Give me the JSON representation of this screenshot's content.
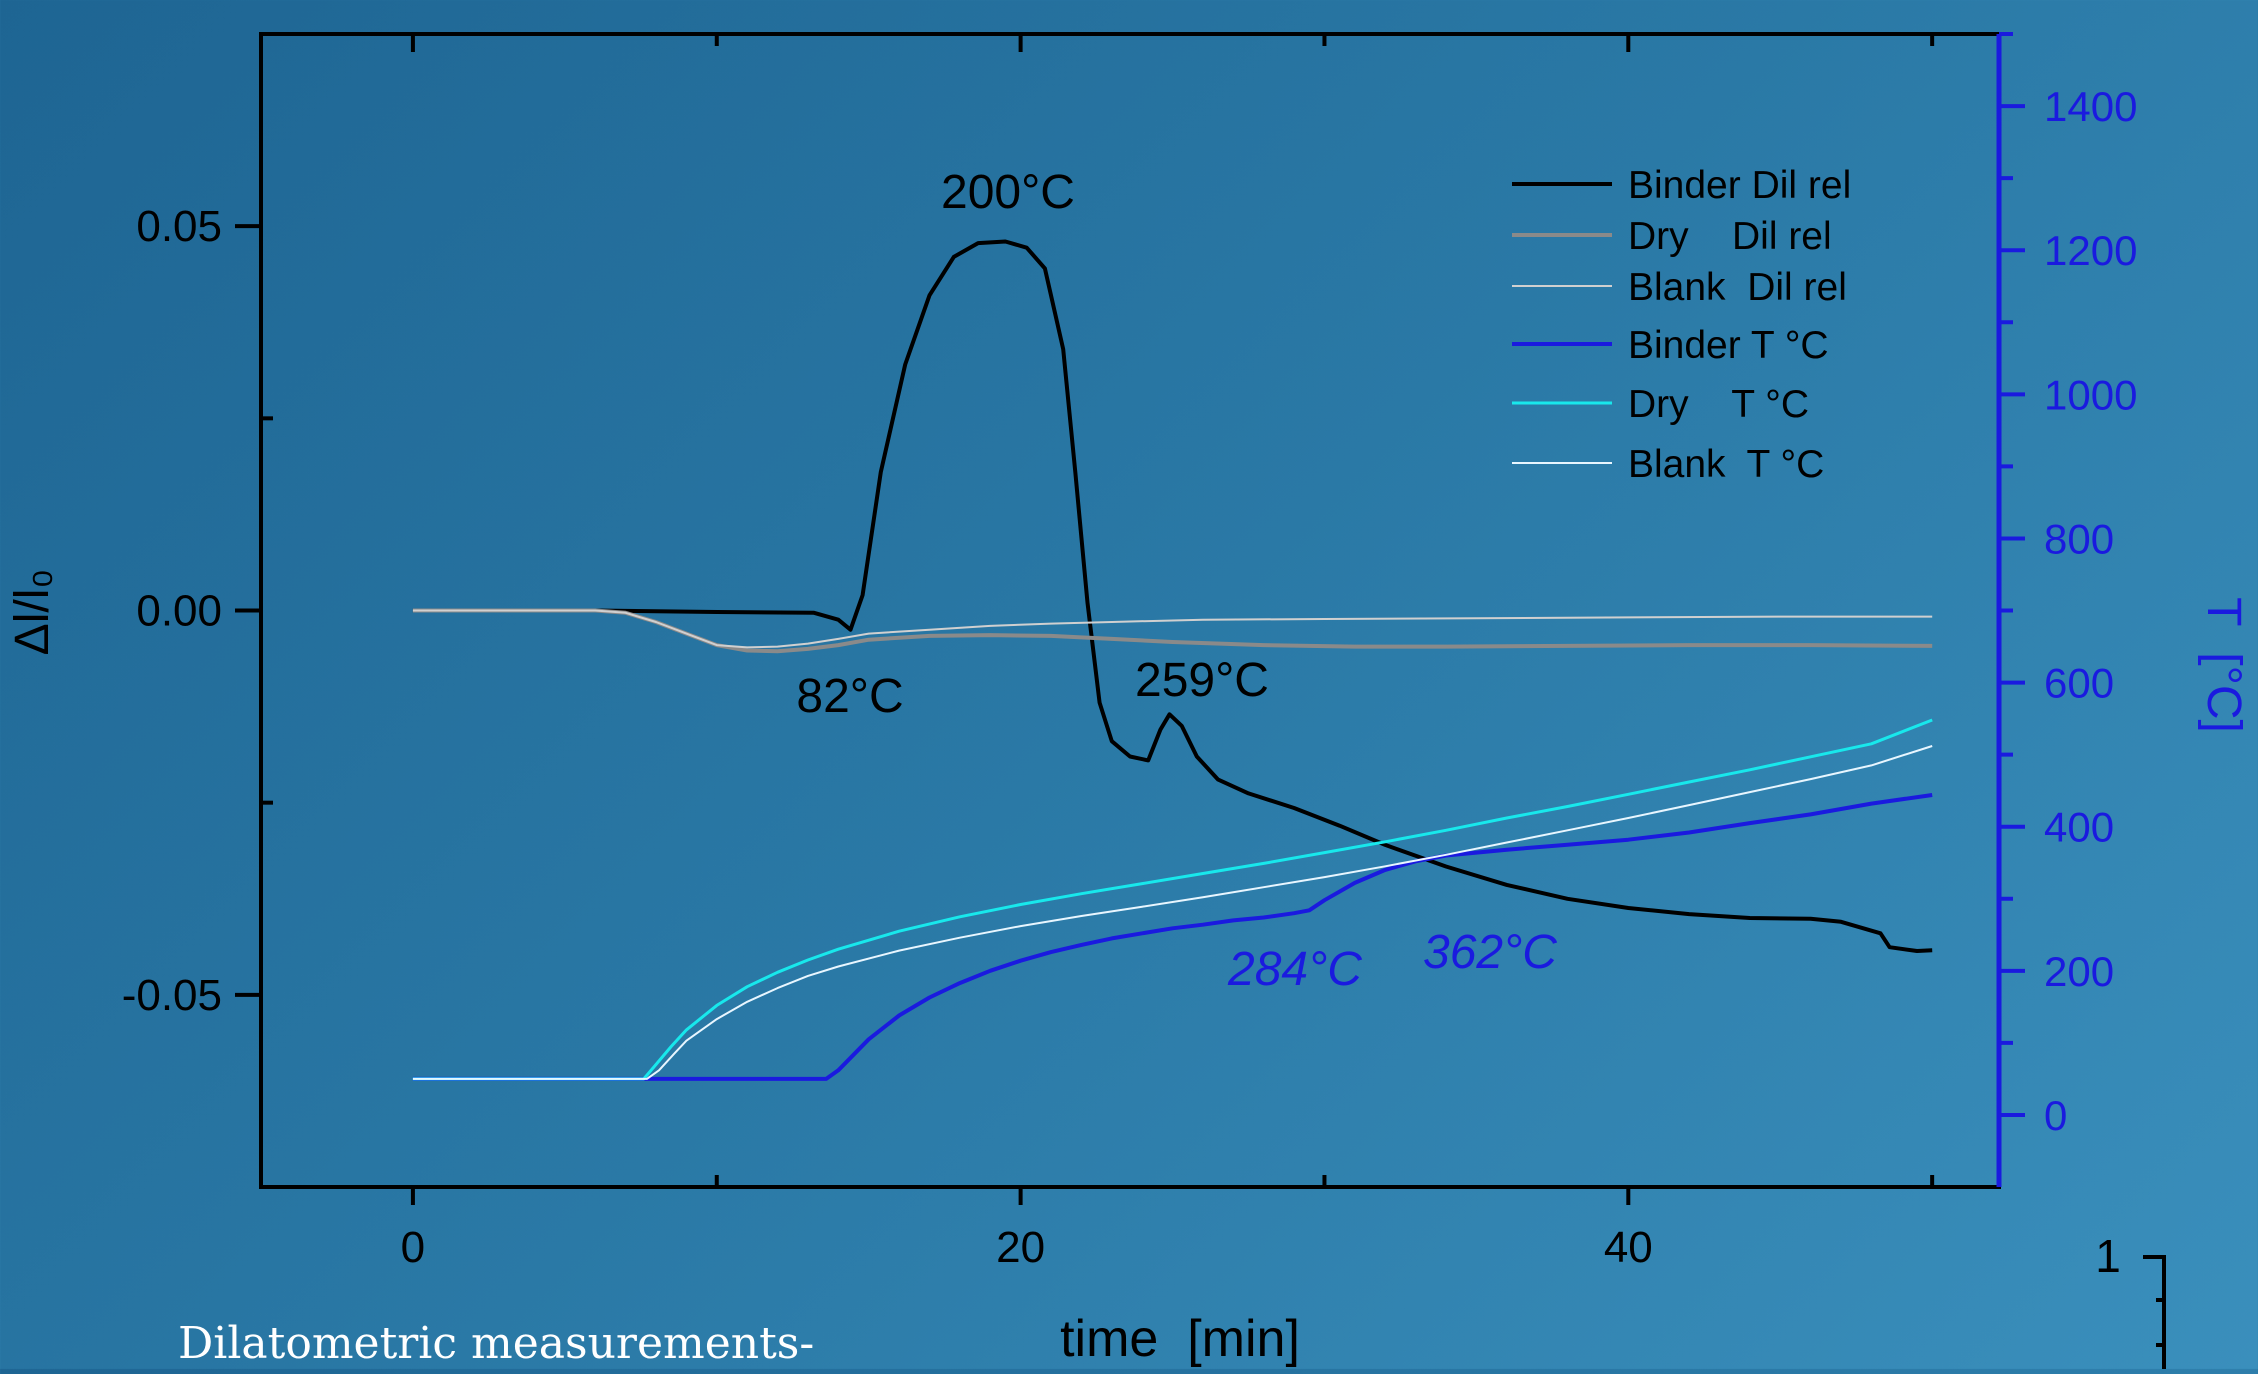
{
  "chart_data": {
    "type": "line",
    "xlabel": "time  [min]",
    "ylabel_left": "Δl/l₀",
    "ylabel_right": "T  [°C]",
    "xlim": [
      -5,
      52.2
    ],
    "ylim_left": [
      -0.075,
      0.075
    ],
    "ylim_right": [
      -100,
      1500
    ],
    "x_ticks": [
      0,
      20,
      40
    ],
    "y_left_ticks": [
      0.05,
      0.0,
      -0.05
    ],
    "y_left_tick_labels": [
      "0.05",
      "0.00",
      "-0.05"
    ],
    "y_right_ticks": [
      0,
      200,
      400,
      600,
      800,
      1000,
      1200,
      1400
    ],
    "grid": false,
    "legend_position": "top-right",
    "series": [
      {
        "name": "Binder Dil rel",
        "axis": "left",
        "color": "#000000",
        "width": 4,
        "points": [
          [
            0,
            0
          ],
          [
            6,
            0
          ],
          [
            10,
            -0.0002
          ],
          [
            13.2,
            -0.0003
          ],
          [
            14,
            -0.0012
          ],
          [
            14.4,
            -0.0025
          ],
          [
            14.8,
            0.002
          ],
          [
            15.4,
            0.018
          ],
          [
            16.2,
            0.032
          ],
          [
            17,
            0.041
          ],
          [
            17.8,
            0.046
          ],
          [
            18.6,
            0.0478
          ],
          [
            19.5,
            0.048
          ],
          [
            20.2,
            0.0472
          ],
          [
            20.8,
            0.0445
          ],
          [
            21.4,
            0.034
          ],
          [
            21.8,
            0.018
          ],
          [
            22.2,
            0.001
          ],
          [
            22.6,
            -0.012
          ],
          [
            23,
            -0.017
          ],
          [
            23.6,
            -0.019
          ],
          [
            24.2,
            -0.0195
          ],
          [
            24.6,
            -0.0155
          ],
          [
            24.9,
            -0.0135
          ],
          [
            25.3,
            -0.015
          ],
          [
            25.8,
            -0.019
          ],
          [
            26.5,
            -0.022
          ],
          [
            27.5,
            -0.0238
          ],
          [
            29,
            -0.0257
          ],
          [
            30.5,
            -0.028
          ],
          [
            32,
            -0.0305
          ],
          [
            34,
            -0.0333
          ],
          [
            36,
            -0.0357
          ],
          [
            38,
            -0.0375
          ],
          [
            40,
            -0.0387
          ],
          [
            42,
            -0.0395
          ],
          [
            44,
            -0.04
          ],
          [
            46,
            -0.0401
          ],
          [
            47,
            -0.0405
          ],
          [
            48.3,
            -0.042
          ],
          [
            48.6,
            -0.0438
          ],
          [
            49.5,
            -0.0443
          ],
          [
            50,
            -0.0442
          ]
        ]
      },
      {
        "name": "Dry    Dil rel",
        "axis": "left",
        "color": "#8a8a8a",
        "width": 4,
        "points": [
          [
            0,
            0
          ],
          [
            6,
            0
          ],
          [
            7,
            -0.0003
          ],
          [
            8,
            -0.0015
          ],
          [
            9,
            -0.003
          ],
          [
            10,
            -0.0045
          ],
          [
            11,
            -0.0052
          ],
          [
            12,
            -0.0053
          ],
          [
            13,
            -0.005
          ],
          [
            14,
            -0.0045
          ],
          [
            15,
            -0.0038
          ],
          [
            17,
            -0.0033
          ],
          [
            19,
            -0.0032
          ],
          [
            21,
            -0.0033
          ],
          [
            23,
            -0.0037
          ],
          [
            25,
            -0.0041
          ],
          [
            28,
            -0.0045
          ],
          [
            31,
            -0.0047
          ],
          [
            34,
            -0.0047
          ],
          [
            38,
            -0.0046
          ],
          [
            42,
            -0.0045
          ],
          [
            46,
            -0.0045
          ],
          [
            50,
            -0.0046
          ]
        ]
      },
      {
        "name": "Blank  Dil rel",
        "axis": "left",
        "color": "#d0d0d0",
        "width": 2,
        "points": [
          [
            0,
            0
          ],
          [
            6,
            0
          ],
          [
            7,
            -0.0003
          ],
          [
            8,
            -0.0015
          ],
          [
            9,
            -0.003
          ],
          [
            10,
            -0.0045
          ],
          [
            11,
            -0.0048
          ],
          [
            12,
            -0.0047
          ],
          [
            13,
            -0.0043
          ],
          [
            14,
            -0.0037
          ],
          [
            15,
            -0.003
          ],
          [
            17,
            -0.0025
          ],
          [
            19,
            -0.002
          ],
          [
            21,
            -0.0017
          ],
          [
            23,
            -0.0015
          ],
          [
            26,
            -0.0012
          ],
          [
            30,
            -0.0011
          ],
          [
            35,
            -0.001
          ],
          [
            40,
            -0.0009
          ],
          [
            45,
            -0.0008
          ],
          [
            50,
            -0.0008
          ]
        ]
      },
      {
        "name": "Binder T °C",
        "axis": "right",
        "color": "#1a1adf",
        "width": 4,
        "points": [
          [
            0,
            50
          ],
          [
            13.6,
            50
          ],
          [
            14,
            62
          ],
          [
            15,
            105
          ],
          [
            16,
            138
          ],
          [
            17,
            163
          ],
          [
            18,
            183
          ],
          [
            19,
            200
          ],
          [
            20,
            214
          ],
          [
            21,
            226
          ],
          [
            22,
            236
          ],
          [
            23,
            245
          ],
          [
            24,
            252
          ],
          [
            25,
            259
          ],
          [
            26,
            264
          ],
          [
            27,
            270
          ],
          [
            28,
            274
          ],
          [
            29,
            280
          ],
          [
            29.5,
            284
          ],
          [
            30,
            298
          ],
          [
            31,
            322
          ],
          [
            32,
            340
          ],
          [
            33,
            352
          ],
          [
            34,
            360
          ],
          [
            35,
            364
          ],
          [
            36,
            368
          ],
          [
            38,
            375
          ],
          [
            40,
            382
          ],
          [
            42,
            392
          ],
          [
            44,
            405
          ],
          [
            46,
            417
          ],
          [
            48,
            432
          ],
          [
            50,
            444
          ]
        ]
      },
      {
        "name": "Dry    T °C",
        "axis": "right",
        "color": "#18e8ec",
        "width": 3,
        "points": [
          [
            0,
            50
          ],
          [
            7.6,
            50
          ],
          [
            8,
            70
          ],
          [
            8.5,
            95
          ],
          [
            9,
            118
          ],
          [
            10,
            152
          ],
          [
            11,
            178
          ],
          [
            12,
            198
          ],
          [
            13,
            215
          ],
          [
            14,
            230
          ],
          [
            16,
            255
          ],
          [
            18,
            275
          ],
          [
            20,
            292
          ],
          [
            22,
            307
          ],
          [
            24,
            321
          ],
          [
            26,
            335
          ],
          [
            28,
            349
          ],
          [
            30,
            364
          ],
          [
            32,
            379
          ],
          [
            34,
            395
          ],
          [
            36,
            412
          ],
          [
            38,
            428
          ],
          [
            40,
            445
          ],
          [
            42,
            462
          ],
          [
            44,
            479
          ],
          [
            46,
            497
          ],
          [
            48,
            515
          ],
          [
            50,
            548
          ]
        ]
      },
      {
        "name": "Blank  T °C",
        "axis": "right",
        "color": "#e8f6ff",
        "width": 2,
        "points": [
          [
            0,
            50
          ],
          [
            7.7,
            50
          ],
          [
            8.1,
            62
          ],
          [
            8.6,
            85
          ],
          [
            9,
            103
          ],
          [
            10,
            133
          ],
          [
            11,
            157
          ],
          [
            12,
            176
          ],
          [
            13,
            193
          ],
          [
            14,
            206
          ],
          [
            16,
            228
          ],
          [
            18,
            246
          ],
          [
            20,
            262
          ],
          [
            22,
            276
          ],
          [
            24,
            289
          ],
          [
            26,
            302
          ],
          [
            28,
            316
          ],
          [
            30,
            330
          ],
          [
            32,
            345
          ],
          [
            34,
            361
          ],
          [
            36,
            378
          ],
          [
            38,
            395
          ],
          [
            40,
            412
          ],
          [
            42,
            430
          ],
          [
            44,
            448
          ],
          [
            46,
            466
          ],
          [
            48,
            485
          ],
          [
            50,
            512
          ]
        ]
      }
    ],
    "annotations": [
      {
        "text": "200°C",
        "color": "#000000",
        "italic": false
      },
      {
        "text": "82°C",
        "color": "#000000",
        "italic": false
      },
      {
        "text": "259°C",
        "color": "#000000",
        "italic": false
      },
      {
        "text": "284°C",
        "color": "#1a1adf",
        "italic": true
      },
      {
        "text": "362°C",
        "color": "#1a1adf",
        "italic": true
      }
    ],
    "colors": {
      "axis_left": "#000000",
      "axis_right": "#1a1adf"
    }
  },
  "caption": "Dilatometric measurements-",
  "fragment_label": "1"
}
